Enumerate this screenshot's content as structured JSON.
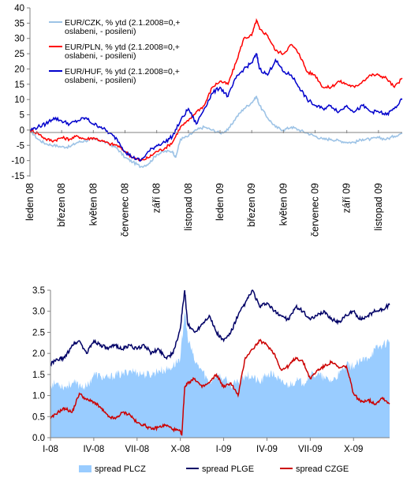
{
  "chart_data": [
    {
      "type": "line",
      "ylim": [
        -15,
        40
      ],
      "yticks": [
        "40",
        "35",
        "30",
        "25",
        "20",
        "15",
        "10",
        "5",
        "0",
        "-5",
        "-10",
        "-15"
      ],
      "ytick_values": [
        40,
        35,
        30,
        25,
        20,
        15,
        10,
        5,
        0,
        -5,
        -10,
        -15
      ],
      "xtick_labels": [
        "leden 08",
        "březen 08",
        "květen 08",
        "červenec 08",
        "září 08",
        "listopad 08",
        "leden 09",
        "březen 09",
        "květen 09",
        "červenec 09",
        "září 09",
        "listopad 09"
      ],
      "x_months": [
        0,
        2,
        4,
        6,
        8,
        10,
        12,
        14,
        16,
        18,
        20,
        22
      ],
      "x_range": [
        0,
        23.5
      ],
      "grid": false,
      "legend_position": "top-left",
      "series": [
        {
          "name": "EUR/CZK, % ytd (2.1.2008=0,+ oslabeni, - posileni)",
          "legend_lines": [
            "EUR/CZK, % ytd (2.1.2008=0,+",
            "oslabeni, - posileni)"
          ],
          "color": "#9dc3e6",
          "x": [
            0,
            0.5,
            1,
            1.5,
            2,
            2.5,
            3,
            3.5,
            4,
            4.5,
            5,
            5.5,
            6,
            6.5,
            7,
            7.5,
            8,
            8.5,
            9,
            9.2,
            9.5,
            10,
            10.5,
            11,
            11.5,
            12,
            12.5,
            13,
            13.5,
            14,
            14.3,
            14.5,
            15,
            15.5,
            16,
            16.5,
            17,
            17.5,
            18,
            18.5,
            19,
            19.5,
            20,
            20.5,
            21,
            21.5,
            22,
            22.5,
            23,
            23.5
          ],
          "values": [
            0,
            -3,
            -4.5,
            -5,
            -5.5,
            -5.5,
            -4,
            -3.5,
            -3,
            -3.5,
            -4.5,
            -6,
            -9,
            -10.5,
            -12,
            -11,
            -8,
            -7,
            -7,
            -9,
            -3,
            -2,
            0,
            1,
            0,
            -1,
            0,
            4,
            7,
            9,
            11,
            8,
            4,
            1,
            0,
            1,
            0,
            -1,
            -2,
            -3,
            -3,
            -3.5,
            -4,
            -4,
            -3,
            -3,
            -2.5,
            -3,
            -2,
            -1
          ]
        },
        {
          "name": "EUR/PLN, % ytd (2.1.2008=0,+ oslabeni, - posileni)",
          "legend_lines": [
            "EUR/PLN, % ytd (2.1.2008=0,+",
            "oslabeni, - posileni)"
          ],
          "color": "#ff0000",
          "x": [
            0,
            0.5,
            1,
            1.5,
            2,
            2.5,
            3,
            3.5,
            4,
            4.5,
            5,
            5.5,
            6,
            6.5,
            7,
            7.5,
            8,
            8.5,
            9,
            9.5,
            10,
            10.5,
            11,
            11.5,
            12,
            12.5,
            13,
            13.5,
            14,
            14.3,
            14.5,
            15,
            15.5,
            16,
            16.5,
            17,
            17.5,
            18,
            18.5,
            19,
            19.5,
            20,
            20.5,
            21,
            21.5,
            22,
            22.5,
            23,
            23.5
          ],
          "values": [
            0,
            -1,
            -3,
            -3.5,
            -2.5,
            -3,
            -2,
            -3,
            -2.5,
            -3.5,
            -4.5,
            -5,
            -7,
            -9,
            -10,
            -9,
            -7,
            -6,
            -4,
            1,
            3,
            6,
            8,
            14,
            16,
            15,
            22,
            30,
            31,
            36,
            33,
            31,
            26,
            25,
            28,
            25,
            19,
            18,
            14,
            14,
            16,
            15,
            14,
            16,
            18,
            18,
            17,
            14,
            17
          ]
        },
        {
          "name": "EUR/HUF, % ytd (2.1.2008=0,+ oslabeni, - posileni)",
          "legend_lines": [
            "EUR/HUF, % ytd (2.1.2008=0,+",
            "oslabeni, - posileni)"
          ],
          "color": "#0000cc",
          "x": [
            0,
            0.5,
            1,
            1.5,
            2,
            2.5,
            3,
            3.5,
            4,
            4.5,
            5,
            5.5,
            6,
            6.5,
            7,
            7.5,
            8,
            8.5,
            9,
            9.5,
            10,
            10.5,
            11,
            11.5,
            12,
            12.5,
            13,
            13.5,
            14,
            14.3,
            14.5,
            15,
            15.5,
            16,
            16.5,
            17,
            17.5,
            18,
            18.5,
            19,
            19.5,
            20,
            20.5,
            21,
            21.5,
            22,
            22.5,
            23,
            23.5
          ],
          "values": [
            0,
            1,
            2,
            4,
            3,
            2,
            3,
            4,
            2,
            1,
            -1,
            -3,
            -7,
            -9,
            -10,
            -7,
            -5,
            -4,
            -2,
            3,
            7,
            2,
            7,
            12,
            14,
            11,
            17,
            20,
            22,
            25,
            20,
            18,
            23,
            19,
            18,
            14,
            10,
            8,
            7,
            8,
            6,
            8,
            6,
            8,
            6,
            6,
            5,
            7,
            10
          ]
        }
      ]
    },
    {
      "type": "line",
      "ylim": [
        0,
        3.5
      ],
      "yticks": [
        "3.5",
        "3.0",
        "2.5",
        "2.0",
        "1.5",
        "1.0",
        "0.5",
        "0.0"
      ],
      "ytick_values": [
        3.5,
        3.0,
        2.5,
        2.0,
        1.5,
        1.0,
        0.5,
        0.0
      ],
      "xtick_labels": [
        "I-08",
        "IV-08",
        "VII-08",
        "X-08",
        "I-09",
        "IV-09",
        "VII-09",
        "X-09"
      ],
      "x_months": [
        0,
        3,
        6,
        9,
        12,
        15,
        18,
        21
      ],
      "x_range": [
        0,
        23.5
      ],
      "grid": false,
      "legend_position": "bottom",
      "series": [
        {
          "name": "spread PLCZ",
          "style": "area",
          "color": "#99ccff",
          "x": [
            0,
            0.5,
            1,
            1.5,
            2,
            2.5,
            3,
            3.5,
            4,
            4.5,
            5,
            5.5,
            6,
            6.5,
            7,
            7.5,
            8,
            8.5,
            9,
            9.3,
            9.5,
            10,
            10.5,
            11,
            11.5,
            12,
            12.5,
            13,
            13.5,
            14,
            14.5,
            15,
            15.5,
            16,
            16.5,
            17,
            17.5,
            18,
            18.5,
            19,
            19.5,
            20,
            20.5,
            21,
            21.5,
            22,
            22.5,
            23,
            23.5
          ],
          "values": [
            1.25,
            1.3,
            1.2,
            1.3,
            1.25,
            1.2,
            1.5,
            1.45,
            1.4,
            1.5,
            1.5,
            1.6,
            1.55,
            1.5,
            1.5,
            1.6,
            1.6,
            1.7,
            1.9,
            3.0,
            2.4,
            1.8,
            1.6,
            1.3,
            1.5,
            1.4,
            1.25,
            1.3,
            1.5,
            1.45,
            1.3,
            1.5,
            1.5,
            1.3,
            1.25,
            1.35,
            1.3,
            1.5,
            1.5,
            1.4,
            1.35,
            1.5,
            1.7,
            1.7,
            1.8,
            1.9,
            2.1,
            2.2,
            2.3
          ]
        },
        {
          "name": "spread PLGE",
          "style": "line",
          "color": "#000066",
          "x": [
            0,
            0.5,
            1,
            1.5,
            2,
            2.5,
            3,
            3.5,
            4,
            4.5,
            5,
            5.5,
            6,
            6.5,
            7,
            7.5,
            8,
            8.5,
            9,
            9.3,
            9.5,
            10,
            10.5,
            11,
            11.5,
            12,
            12.5,
            13,
            13.5,
            14,
            14.5,
            15,
            15.5,
            16,
            16.5,
            17,
            17.5,
            18,
            18.5,
            19,
            19.5,
            20,
            20.5,
            21,
            21.5,
            22,
            22.5,
            23,
            23.5
          ],
          "values": [
            1.75,
            1.85,
            1.9,
            2.2,
            2.3,
            2.0,
            2.3,
            2.2,
            2.1,
            2.2,
            2.1,
            2.2,
            2.1,
            2.2,
            2.0,
            2.1,
            1.9,
            2.0,
            2.6,
            3.5,
            2.7,
            2.5,
            2.7,
            2.9,
            2.5,
            2.3,
            2.5,
            2.9,
            3.2,
            3.5,
            3.1,
            3.2,
            3.0,
            2.9,
            2.8,
            3.1,
            3.0,
            2.8,
            2.9,
            3.0,
            2.8,
            2.75,
            2.9,
            3.0,
            2.8,
            2.9,
            3.0,
            3.05,
            3.15
          ]
        },
        {
          "name": "spread CZGE",
          "style": "line",
          "color": "#cc0000",
          "x": [
            0,
            0.5,
            1,
            1.5,
            2,
            2.5,
            3,
            3.5,
            4,
            4.5,
            5,
            5.5,
            6,
            6.5,
            7,
            7.5,
            8,
            8.5,
            9,
            9.1,
            9.3,
            9.5,
            10,
            10.5,
            11,
            11.5,
            12,
            12.5,
            13,
            13.5,
            14,
            14.5,
            15,
            15.5,
            16,
            16.5,
            17,
            17.5,
            18,
            18.5,
            19,
            19.5,
            20,
            20.5,
            21,
            21.5,
            22,
            22.5,
            23,
            23.5
          ],
          "values": [
            0.45,
            0.6,
            0.7,
            0.6,
            1.05,
            0.9,
            0.85,
            0.7,
            0.5,
            0.45,
            0.6,
            0.55,
            0.35,
            0.3,
            0.2,
            0.25,
            0.3,
            0.2,
            0.15,
            0.05,
            1.2,
            1.3,
            1.4,
            1.2,
            1.3,
            1.5,
            1.2,
            1.3,
            1.0,
            1.9,
            2.1,
            2.3,
            2.2,
            2.0,
            1.6,
            1.7,
            1.9,
            1.8,
            1.4,
            1.6,
            1.7,
            1.8,
            1.65,
            1.7,
            1.05,
            0.85,
            0.9,
            0.8,
            0.95,
            0.8
          ]
        }
      ]
    }
  ]
}
